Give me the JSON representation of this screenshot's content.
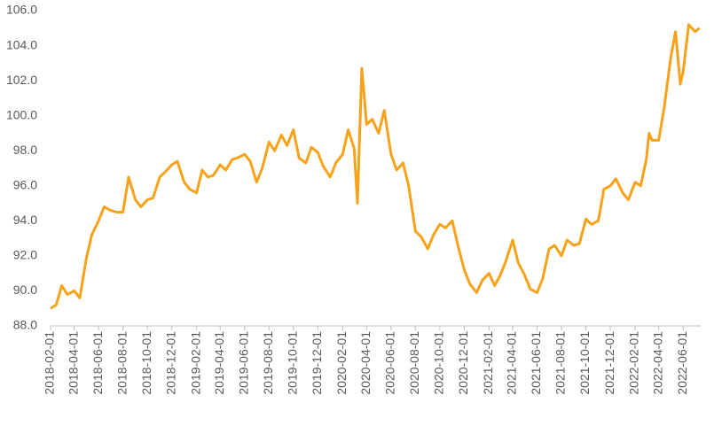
{
  "chart_data": {
    "type": "line",
    "x": [
      "2018-02-01",
      "2018-02-15",
      "2018-03-01",
      "2018-03-15",
      "2018-04-01",
      "2018-04-15",
      "2018-05-01",
      "2018-05-15",
      "2018-06-01",
      "2018-06-15",
      "2018-07-01",
      "2018-07-15",
      "2018-08-01",
      "2018-08-15",
      "2018-09-01",
      "2018-09-15",
      "2018-10-01",
      "2018-10-15",
      "2018-11-01",
      "2018-11-15",
      "2018-12-01",
      "2018-12-15",
      "2019-01-01",
      "2019-01-15",
      "2019-02-01",
      "2019-02-15",
      "2019-03-01",
      "2019-03-15",
      "2019-04-01",
      "2019-04-15",
      "2019-05-01",
      "2019-05-15",
      "2019-06-01",
      "2019-06-15",
      "2019-07-01",
      "2019-07-15",
      "2019-08-01",
      "2019-08-15",
      "2019-09-01",
      "2019-09-15",
      "2019-10-01",
      "2019-10-15",
      "2019-11-01",
      "2019-11-15",
      "2019-12-01",
      "2019-12-15",
      "2020-01-01",
      "2020-01-15",
      "2020-02-01",
      "2020-02-15",
      "2020-03-01",
      "2020-03-09",
      "2020-03-20",
      "2020-04-01",
      "2020-04-15",
      "2020-05-01",
      "2020-05-15",
      "2020-06-01",
      "2020-06-15",
      "2020-07-01",
      "2020-07-15",
      "2020-08-01",
      "2020-08-15",
      "2020-09-01",
      "2020-09-15",
      "2020-10-01",
      "2020-10-15",
      "2020-11-01",
      "2020-11-15",
      "2020-12-01",
      "2020-12-15",
      "2021-01-01",
      "2021-01-15",
      "2021-02-01",
      "2021-02-15",
      "2021-03-01",
      "2021-03-15",
      "2021-04-01",
      "2021-04-15",
      "2021-05-01",
      "2021-05-15",
      "2021-06-01",
      "2021-06-15",
      "2021-07-01",
      "2021-07-15",
      "2021-08-01",
      "2021-08-15",
      "2021-09-01",
      "2021-09-15",
      "2021-10-01",
      "2021-10-15",
      "2021-11-01",
      "2021-11-15",
      "2021-12-01",
      "2021-12-15",
      "2022-01-01",
      "2022-01-15",
      "2022-02-01",
      "2022-02-15",
      "2022-03-01",
      "2022-03-08",
      "2022-03-15",
      "2022-04-01",
      "2022-04-15",
      "2022-05-01",
      "2022-05-13",
      "2022-05-25",
      "2022-06-01",
      "2022-06-15",
      "2022-07-01",
      "2022-07-12"
    ],
    "series": [
      {
        "color": "#f7a21b",
        "values": [
          89.0,
          89.2,
          90.3,
          89.8,
          90.0,
          89.6,
          91.8,
          93.2,
          94.0,
          94.8,
          94.6,
          94.5,
          94.5,
          96.5,
          95.2,
          94.8,
          95.2,
          95.3,
          96.5,
          96.8,
          97.2,
          97.4,
          96.2,
          95.8,
          95.6,
          96.9,
          96.5,
          96.6,
          97.2,
          96.9,
          97.5,
          97.6,
          97.8,
          97.4,
          96.2,
          97.0,
          98.5,
          98.0,
          98.9,
          98.3,
          99.2,
          97.6,
          97.3,
          98.2,
          97.9,
          97.1,
          96.5,
          97.3,
          97.8,
          99.2,
          98.1,
          95.0,
          102.7,
          99.5,
          99.8,
          99.0,
          100.3,
          97.8,
          96.9,
          97.3,
          96.0,
          93.4,
          93.1,
          92.4,
          93.2,
          93.8,
          93.6,
          94.0,
          92.6,
          91.2,
          90.4,
          89.9,
          90.6,
          91.0,
          90.3,
          90.9,
          91.7,
          92.9,
          91.6,
          90.9,
          90.1,
          89.9,
          90.7,
          92.4,
          92.6,
          92.0,
          92.9,
          92.6,
          92.7,
          94.1,
          93.8,
          94.0,
          95.8,
          96.0,
          96.4,
          95.6,
          95.2,
          96.2,
          96.0,
          97.5,
          99.0,
          98.6,
          98.6,
          100.5,
          103.3,
          104.8,
          101.8,
          102.5,
          105.2,
          104.8,
          105.0
        ]
      }
    ],
    "xlim": [
      "2018-02-01",
      "2022-07-15"
    ],
    "xticks": [
      "2018-02-01",
      "2018-04-01",
      "2018-06-01",
      "2018-08-01",
      "2018-10-01",
      "2018-12-01",
      "2019-02-01",
      "2019-04-01",
      "2019-06-01",
      "2019-08-01",
      "2019-10-01",
      "2019-12-01",
      "2020-02-01",
      "2020-04-01",
      "2020-06-01",
      "2020-08-01",
      "2020-10-01",
      "2020-12-01",
      "2021-02-01",
      "2021-04-01",
      "2021-06-01",
      "2021-08-01",
      "2021-10-01",
      "2021-12-01",
      "2022-02-01",
      "2022-04-01",
      "2022-06-01"
    ],
    "ylim": [
      88,
      106
    ],
    "yticks": [
      {
        "value": 88,
        "label": "88.0"
      },
      {
        "value": 90,
        "label": "90.0"
      },
      {
        "value": 92,
        "label": "92.0"
      },
      {
        "value": 94,
        "label": "94.0"
      },
      {
        "value": 96,
        "label": "96.0"
      },
      {
        "value": 98,
        "label": "98.0"
      },
      {
        "value": 100,
        "label": "100.0"
      },
      {
        "value": 102,
        "label": "102.0"
      },
      {
        "value": 104,
        "label": "104.0"
      },
      {
        "value": 106,
        "label": "106.0"
      }
    ],
    "grid": false
  }
}
